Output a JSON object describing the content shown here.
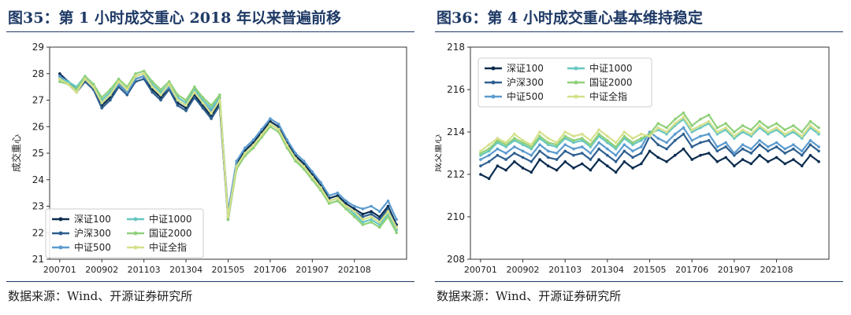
{
  "charts": [
    {
      "figure_title": "图35：第 1 小时成交重心 2018 年以来普遍前移",
      "source": "数据来源：Wind、开源证券研究所"
    },
    {
      "figure_title": "图36：第 4 小时成交重心基本维持稳定",
      "source": "数据来源：Wind、开源证券研究所"
    }
  ],
  "chart_data": [
    {
      "type": "line",
      "title": "",
      "xlabel": "",
      "ylabel": "成交重心",
      "ylim": [
        21,
        29
      ],
      "yticks": [
        21,
        22,
        23,
        24,
        25,
        26,
        27,
        28,
        29
      ],
      "x_tick_labels": [
        "200701",
        "200902",
        "201103",
        "201304",
        "201505",
        "201706",
        "201907",
        "202108"
      ],
      "grid": false,
      "legend_position": "lower-left",
      "legend_columns": 2,
      "x_dates": [
        "2007-01",
        "2007-06",
        "2007-11",
        "2008-04",
        "2008-09",
        "2009-02",
        "2009-07",
        "2009-12",
        "2010-05",
        "2010-10",
        "2011-03",
        "2011-08",
        "2012-01",
        "2012-06",
        "2012-11",
        "2013-04",
        "2013-09",
        "2014-02",
        "2014-07",
        "2014-12",
        "2015-05",
        "2015-10",
        "2016-03",
        "2016-08",
        "2017-01",
        "2017-06",
        "2017-11",
        "2018-04",
        "2018-09",
        "2019-02",
        "2019-07",
        "2019-12",
        "2020-05",
        "2020-10",
        "2021-03",
        "2021-08",
        "2022-01",
        "2022-06",
        "2022-11",
        "2023-04",
        "2023-09"
      ],
      "series": [
        {
          "name": "深证100",
          "color": "#0b2c4f",
          "values": [
            28.0,
            27.7,
            27.4,
            27.8,
            27.5,
            26.8,
            27.1,
            27.6,
            27.3,
            27.8,
            27.9,
            27.4,
            27.1,
            27.5,
            26.9,
            26.7,
            27.2,
            26.8,
            26.4,
            26.9,
            22.6,
            24.6,
            25.1,
            25.4,
            25.8,
            26.2,
            26.0,
            25.4,
            24.9,
            24.6,
            24.2,
            23.8,
            23.3,
            23.4,
            23.1,
            22.9,
            22.7,
            22.8,
            22.6,
            23.0,
            22.3
          ]
        },
        {
          "name": "沪深300",
          "color": "#2e5f8f",
          "values": [
            27.9,
            27.6,
            27.3,
            27.7,
            27.4,
            26.7,
            27.0,
            27.5,
            27.2,
            27.7,
            27.8,
            27.3,
            27.0,
            27.4,
            26.8,
            26.6,
            27.1,
            26.7,
            26.3,
            26.8,
            22.5,
            24.5,
            25.0,
            25.3,
            25.7,
            26.1,
            25.9,
            25.3,
            24.8,
            24.5,
            24.1,
            23.7,
            23.2,
            23.3,
            23.0,
            22.8,
            22.6,
            22.7,
            22.5,
            22.9,
            22.2
          ]
        },
        {
          "name": "中证500",
          "color": "#5b9bcf",
          "values": [
            27.9,
            27.7,
            27.4,
            27.8,
            27.5,
            26.9,
            27.2,
            27.6,
            27.3,
            27.8,
            27.9,
            27.5,
            27.2,
            27.5,
            27.0,
            26.8,
            27.3,
            26.9,
            26.6,
            27.0,
            22.8,
            24.7,
            25.2,
            25.5,
            25.9,
            26.3,
            26.1,
            25.5,
            25.0,
            24.7,
            24.3,
            23.9,
            23.4,
            23.5,
            23.2,
            23.0,
            22.9,
            23.0,
            22.8,
            23.2,
            22.5
          ]
        },
        {
          "name": "中证1000",
          "color": "#66c7c0",
          "values": [
            27.8,
            27.7,
            27.5,
            27.9,
            27.6,
            27.0,
            27.3,
            27.7,
            27.4,
            27.9,
            28.0,
            27.6,
            27.3,
            27.6,
            27.1,
            26.9,
            27.4,
            27.0,
            26.7,
            27.1,
            22.6,
            24.5,
            25.0,
            25.3,
            25.7,
            26.1,
            25.9,
            25.3,
            24.8,
            24.5,
            24.1,
            23.7,
            23.2,
            23.3,
            23.0,
            22.7,
            22.4,
            22.5,
            22.3,
            22.7,
            22.1
          ]
        },
        {
          "name": "国证2000",
          "color": "#8fd07a",
          "values": [
            27.7,
            27.6,
            27.4,
            27.9,
            27.6,
            27.1,
            27.4,
            27.8,
            27.5,
            28.0,
            28.1,
            27.7,
            27.4,
            27.7,
            27.2,
            27.0,
            27.5,
            27.1,
            26.8,
            27.2,
            22.5,
            24.4,
            24.9,
            25.2,
            25.6,
            26.0,
            25.8,
            25.2,
            24.7,
            24.4,
            24.0,
            23.6,
            23.1,
            23.2,
            22.9,
            22.6,
            22.3,
            22.4,
            22.2,
            22.6,
            22.0
          ]
        },
        {
          "name": "中证全指",
          "color": "#d6e08a",
          "values": [
            27.8,
            27.6,
            27.3,
            27.8,
            27.5,
            26.9,
            27.2,
            27.7,
            27.4,
            27.9,
            28.0,
            27.5,
            27.2,
            27.6,
            27.0,
            26.8,
            27.3,
            26.9,
            26.5,
            27.0,
            22.6,
            24.5,
            25.0,
            25.3,
            25.7,
            26.1,
            25.9,
            25.3,
            24.8,
            24.5,
            24.1,
            23.7,
            23.2,
            23.3,
            23.0,
            22.8,
            22.5,
            22.6,
            22.4,
            22.8,
            22.2
          ]
        }
      ]
    },
    {
      "type": "line",
      "title": "",
      "xlabel": "",
      "ylabel": "成交重心",
      "ylim": [
        208,
        218
      ],
      "yticks": [
        208,
        210,
        212,
        214,
        216,
        218
      ],
      "x_tick_labels": [
        "200701",
        "200902",
        "201103",
        "201304",
        "201505",
        "201706",
        "201907",
        "202108"
      ],
      "grid": false,
      "legend_position": "top-left",
      "legend_columns": 2,
      "x_dates": [
        "2007-01",
        "2007-06",
        "2007-11",
        "2008-04",
        "2008-09",
        "2009-02",
        "2009-07",
        "2009-12",
        "2010-05",
        "2010-10",
        "2011-03",
        "2011-08",
        "2012-01",
        "2012-06",
        "2012-11",
        "2013-04",
        "2013-09",
        "2014-02",
        "2014-07",
        "2014-12",
        "2015-05",
        "2015-10",
        "2016-03",
        "2016-08",
        "2017-01",
        "2017-06",
        "2017-11",
        "2018-04",
        "2018-09",
        "2019-02",
        "2019-07",
        "2019-12",
        "2020-05",
        "2020-10",
        "2021-03",
        "2021-08",
        "2022-01",
        "2022-06",
        "2022-11",
        "2023-04",
        "2023-09"
      ],
      "series": [
        {
          "name": "深证100",
          "color": "#0b2c4f",
          "values": [
            212.0,
            211.8,
            212.4,
            212.2,
            212.6,
            212.3,
            212.1,
            212.7,
            212.4,
            212.2,
            212.6,
            212.3,
            212.5,
            212.2,
            212.7,
            212.4,
            212.1,
            212.6,
            212.3,
            212.5,
            213.1,
            212.8,
            212.6,
            212.9,
            213.2,
            212.7,
            212.9,
            213.0,
            212.6,
            212.8,
            212.4,
            212.7,
            212.5,
            212.9,
            212.6,
            212.8,
            212.5,
            212.7,
            212.4,
            212.9,
            212.6
          ]
        },
        {
          "name": "沪深300",
          "color": "#2e5f8f",
          "values": [
            212.4,
            212.6,
            212.9,
            212.7,
            213.0,
            212.8,
            212.6,
            213.1,
            212.8,
            212.7,
            213.1,
            212.9,
            213.0,
            212.7,
            213.2,
            212.9,
            212.6,
            213.1,
            212.8,
            213.0,
            213.8,
            213.4,
            213.2,
            213.6,
            213.9,
            213.3,
            213.5,
            213.6,
            213.1,
            213.3,
            212.9,
            213.2,
            213.0,
            213.4,
            213.1,
            213.3,
            213.0,
            213.2,
            212.9,
            213.4,
            213.1
          ]
        },
        {
          "name": "中证500",
          "color": "#5b9bcf",
          "values": [
            212.7,
            212.9,
            213.2,
            213.0,
            213.3,
            213.1,
            212.9,
            213.4,
            213.1,
            213.0,
            213.4,
            213.2,
            213.3,
            213.0,
            213.5,
            213.2,
            212.9,
            213.4,
            213.1,
            213.3,
            214.0,
            213.7,
            213.5,
            213.9,
            214.2,
            213.6,
            213.8,
            213.9,
            213.3,
            213.5,
            213.0,
            213.4,
            213.2,
            213.6,
            213.3,
            213.5,
            213.2,
            213.4,
            213.1,
            213.6,
            213.3
          ]
        },
        {
          "name": "中证1000",
          "color": "#66c7c0",
          "values": [
            212.9,
            213.1,
            213.5,
            213.3,
            213.6,
            213.4,
            213.2,
            213.7,
            213.4,
            213.3,
            213.7,
            213.5,
            213.6,
            213.3,
            213.8,
            213.5,
            213.2,
            213.7,
            213.4,
            213.6,
            213.9,
            214.1,
            213.9,
            214.3,
            214.6,
            214.0,
            214.2,
            214.4,
            213.9,
            214.1,
            213.7,
            214.0,
            213.8,
            214.2,
            213.9,
            214.1,
            213.8,
            214.0,
            213.7,
            214.2,
            213.9
          ]
        },
        {
          "name": "国证2000",
          "color": "#8fd07a",
          "values": [
            213.0,
            213.2,
            213.6,
            213.4,
            213.7,
            213.5,
            213.3,
            213.8,
            213.5,
            213.4,
            213.8,
            213.6,
            213.7,
            213.4,
            213.9,
            213.6,
            213.3,
            213.8,
            213.5,
            213.7,
            213.9,
            214.4,
            214.2,
            214.6,
            214.9,
            214.3,
            214.6,
            214.8,
            214.2,
            214.4,
            214.0,
            214.3,
            214.1,
            214.5,
            214.2,
            214.4,
            214.1,
            214.3,
            214.0,
            214.5,
            214.2
          ]
        },
        {
          "name": "中证全指",
          "color": "#d6e08a",
          "values": [
            213.1,
            213.4,
            213.7,
            213.5,
            213.9,
            213.6,
            213.4,
            214.0,
            213.7,
            213.5,
            214.0,
            213.8,
            213.9,
            213.6,
            214.1,
            213.8,
            213.5,
            214.0,
            213.7,
            213.9,
            213.8,
            214.2,
            214.0,
            214.4,
            214.7,
            214.1,
            214.3,
            214.5,
            214.0,
            214.2,
            213.8,
            214.1,
            213.9,
            214.3,
            214.0,
            214.2,
            213.9,
            214.1,
            213.8,
            214.3,
            214.0
          ]
        }
      ]
    }
  ]
}
